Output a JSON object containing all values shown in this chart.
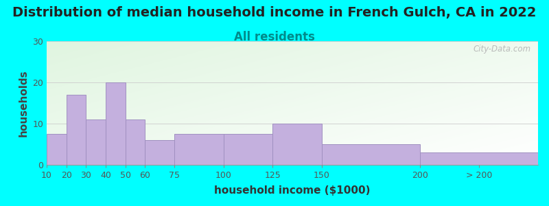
{
  "title": "Distribution of median household income in French Gulch, CA in 2022",
  "subtitle": "All residents",
  "xlabel": "household income ($1000)",
  "ylabel": "households",
  "background_outer": "#00FFFF",
  "bar_color": "#C4B0DE",
  "bar_edge_color": "#A090C0",
  "bar_lefts": [
    10,
    20,
    30,
    40,
    50,
    60,
    75,
    100,
    125,
    150,
    200
  ],
  "bar_widths": [
    10,
    10,
    10,
    10,
    10,
    15,
    25,
    25,
    25,
    50,
    60
  ],
  "values": [
    7.5,
    17,
    11,
    20,
    11,
    6,
    7.5,
    7.5,
    10,
    5,
    3
  ],
  "xlim": [
    10,
    260
  ],
  "ylim": [
    0,
    30
  ],
  "yticks": [
    0,
    10,
    20,
    30
  ],
  "tick_positions": [
    10,
    20,
    30,
    40,
    50,
    60,
    75,
    100,
    125,
    150,
    200,
    230
  ],
  "tick_labels": [
    "10",
    "20",
    "30",
    "40",
    "50",
    "60",
    "75",
    "100",
    "125",
    "150",
    "200",
    "> 200"
  ],
  "title_fontsize": 14,
  "subtitle_fontsize": 12,
  "axis_label_fontsize": 11,
  "tick_fontsize": 9,
  "watermark_text": "City-Data.com",
  "plot_bg_colors": [
    "#FFFFFF",
    "#E8F5E8"
  ],
  "grid_color": "#CCCCCC",
  "subtitle_color": "#008B8B",
  "title_color": "#222222",
  "ylabel_color": "#444444",
  "xlabel_color": "#333333"
}
